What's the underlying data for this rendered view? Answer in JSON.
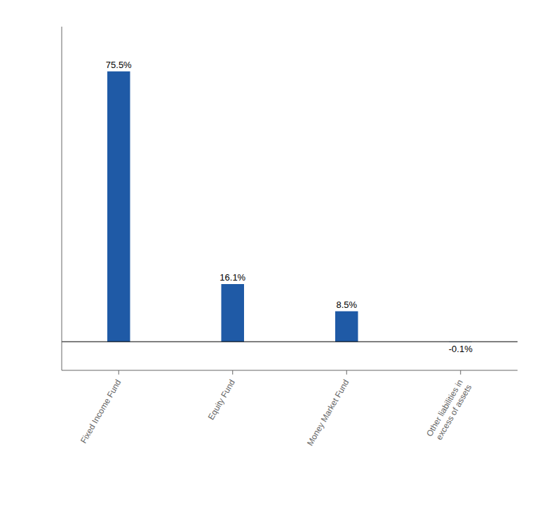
{
  "chart_data": {
    "type": "bar",
    "categories": [
      "Fixed Income Fund",
      "Equity Fund",
      "Money Market Fund",
      "Other liabilities in\nexcess of assets"
    ],
    "values": [
      75.5,
      16.1,
      8.5,
      -0.1
    ],
    "value_labels": [
      "75.5%",
      "16.1%",
      "8.5%",
      "-0.1%"
    ],
    "color": "#1f5aa6",
    "ylim": [
      -8,
      88
    ],
    "data_labels": true,
    "tick_labels": "x",
    "grid": false
  }
}
